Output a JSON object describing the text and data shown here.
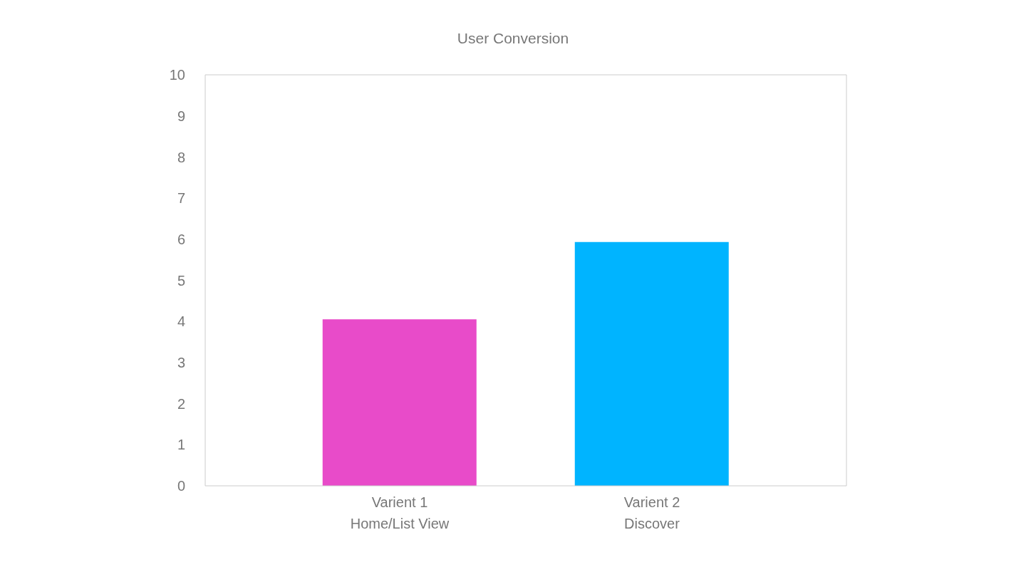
{
  "chart_data": {
    "type": "bar",
    "title": "User Conversion",
    "categories": [
      "Varient 1\nHome/List View",
      "Varient 2\nDiscover"
    ],
    "values": [
      4.05,
      5.93
    ],
    "colors": [
      "#e84bc9",
      "#00b4ff"
    ],
    "ylim": [
      0,
      10
    ],
    "yticks": [
      0,
      1,
      2,
      3,
      4,
      5,
      6,
      7,
      8,
      9,
      10
    ],
    "grid": false
  }
}
